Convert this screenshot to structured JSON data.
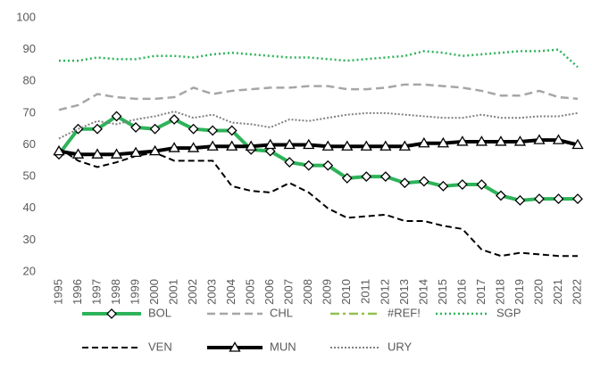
{
  "chart_data": {
    "type": "line",
    "categories": [
      "1995",
      "1996",
      "1997",
      "1998",
      "1999",
      "2000",
      "2001",
      "2002",
      "2003",
      "2004",
      "2005",
      "2006",
      "2007",
      "2008",
      "2009",
      "2010",
      "2011",
      "2012",
      "2013",
      "2014",
      "2015",
      "2016",
      "2017",
      "2018",
      "2019",
      "2020",
      "2021",
      "2022"
    ],
    "ylim": [
      20,
      100
    ],
    "yticks": [
      20,
      30,
      40,
      50,
      60,
      70,
      80,
      90,
      100
    ],
    "grid": false,
    "legend": "bottom",
    "series": [
      {
        "name": "BOL",
        "color": "#2eb35a",
        "width": 4,
        "dash": "none",
        "marker": "diamond",
        "values": [
          57,
          65,
          65,
          69,
          65.5,
          65,
          68,
          65,
          64.5,
          64.5,
          58.5,
          58,
          54.5,
          53.5,
          53.5,
          49.5,
          50,
          50,
          48,
          48.5,
          47,
          47.5,
          47.5,
          44,
          42.5,
          43,
          43,
          43
        ]
      },
      {
        "name": "CHL",
        "color": "#a6a6a6",
        "width": 2.5,
        "dash": "9 5",
        "marker": "none",
        "values": [
          71,
          72.5,
          76,
          75,
          74.5,
          74.5,
          75,
          78,
          76,
          77,
          77.5,
          78,
          78,
          78.5,
          78.5,
          77.5,
          77.5,
          78,
          79,
          79,
          78.5,
          78,
          77,
          75.5,
          75.5,
          77,
          75,
          74.5
        ]
      },
      {
        "name": "#REF!",
        "color": "#92c050",
        "width": 2.5,
        "dash": "10 4 3 4",
        "marker": "none",
        "values": [
          null,
          null,
          null,
          null,
          null,
          null,
          null,
          null,
          null,
          null,
          null,
          null,
          null,
          null,
          null,
          null,
          null,
          null,
          null,
          null,
          null,
          null,
          null,
          null,
          null,
          null,
          null,
          null
        ]
      },
      {
        "name": "SGP",
        "color": "#2eb35a",
        "width": 2.5,
        "dash": "2 3",
        "marker": "none",
        "values": [
          86.5,
          86.5,
          87.5,
          87,
          87,
          88,
          88,
          87.5,
          88.5,
          89,
          88.5,
          88,
          87.5,
          87.5,
          87,
          86.5,
          87,
          87.5,
          88,
          89.5,
          89,
          88,
          88.5,
          89,
          89.5,
          89.5,
          90,
          84.5
        ]
      },
      {
        "name": "VEN",
        "color": "#000000",
        "width": 2,
        "dash": "7 4",
        "marker": "none",
        "values": [
          59,
          55,
          53,
          54.5,
          56.5,
          57.5,
          55,
          55,
          55,
          47,
          45.5,
          45,
          48,
          45,
          40,
          37,
          37.5,
          38,
          36,
          36,
          34.5,
          33.5,
          27,
          25,
          26,
          25.5,
          25,
          25
        ]
      },
      {
        "name": "MUN",
        "color": "#000000",
        "width": 4,
        "dash": "none",
        "marker": "triangle",
        "values": [
          58,
          57,
          57,
          57,
          57.5,
          58,
          59,
          59,
          59.5,
          59.5,
          59.5,
          60,
          60,
          60,
          59.5,
          59.5,
          59.5,
          59.5,
          59.5,
          60.5,
          60.5,
          61,
          61,
          61,
          61,
          61.5,
          61.5,
          60
        ]
      },
      {
        "name": "URY",
        "color": "#7f7f7f",
        "width": 2,
        "dash": "2 2",
        "marker": "none",
        "values": [
          62,
          65,
          67.5,
          66.5,
          68,
          69,
          70.5,
          68.5,
          69.5,
          67,
          66.5,
          65.5,
          68,
          67.5,
          68.5,
          69.5,
          70,
          70,
          69.5,
          69,
          68.5,
          68.5,
          69.5,
          68.5,
          68.5,
          69,
          69,
          70
        ]
      }
    ]
  }
}
